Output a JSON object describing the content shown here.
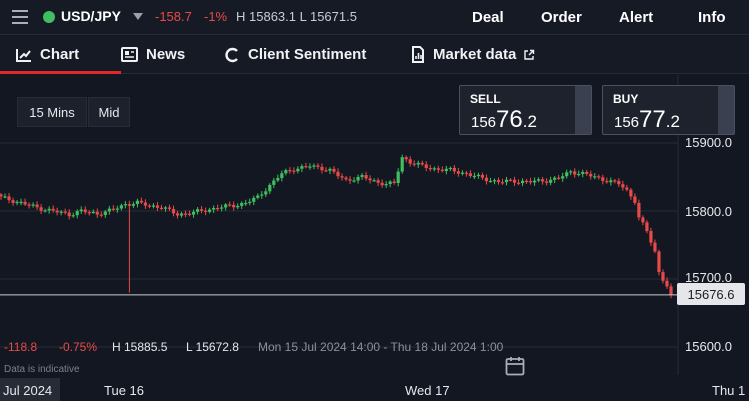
{
  "header": {
    "instrument": "USD/JPY",
    "change": "-158.7",
    "change_pct": "-1%",
    "high_low": "H 15863.1  L 15671.5",
    "nav": [
      "Deal",
      "Order",
      "Alert",
      "Info"
    ],
    "colors": {
      "up": "#3fbf5f",
      "down": "#e84a4a",
      "accent": "#e0282b"
    }
  },
  "tabs": [
    {
      "label": "Chart",
      "icon": "chart-icon",
      "active": true
    },
    {
      "label": "News",
      "icon": "news-icon"
    },
    {
      "label": "Client Sentiment",
      "icon": "sentiment-icon"
    },
    {
      "label": "Market data",
      "icon": "market-data-icon",
      "external_icon": "external-link-icon"
    }
  ],
  "controls": {
    "timeframe": "15 Mins",
    "price_type": "Mid"
  },
  "quotes": {
    "sell": {
      "label": "SELL",
      "prefix": "156",
      "big": "76",
      "suffix": ".2"
    },
    "buy": {
      "label": "BUY",
      "prefix": "156",
      "big": "77",
      "suffix": ".2"
    }
  },
  "stats": {
    "change": "-118.8",
    "change_pct": "-0.75%",
    "high": "H 15885.5",
    "low": "L 15672.8",
    "range": "Mon 15 Jul 2024 14:00 - Thu 18 Jul 2024 1:00",
    "disclaimer": "Data is indicative"
  },
  "chart_data": {
    "type": "candlestick",
    "current_price_label": "15676.6",
    "y_ticks": [
      "15900.0",
      "15800.0",
      "15700.0",
      "15600.0"
    ],
    "y_tick_values": [
      15900,
      15800,
      15700,
      15600
    ],
    "x_ticks": [
      "Jul 2024",
      "Tue 16",
      "Wed 17",
      "Thu 1"
    ],
    "series": [
      {
        "close_path": [
          [
            0,
            15820
          ],
          [
            5,
            15812
          ],
          [
            9,
            15805
          ],
          [
            13,
            15800
          ],
          [
            17,
            15795
          ],
          [
            20,
            15800
          ],
          [
            24,
            15796
          ],
          [
            28,
            15802
          ],
          [
            31,
            15810
          ],
          [
            34,
            15812
          ],
          [
            37,
            15808
          ],
          [
            40,
            15806
          ],
          [
            42,
            15800
          ],
          [
            44,
            15795
          ],
          [
            47,
            15797
          ],
          [
            50,
            15800
          ],
          [
            54,
            15805
          ],
          [
            58,
            15808
          ],
          [
            61,
            15812
          ],
          [
            64,
            15820
          ],
          [
            67,
            15838
          ],
          [
            70,
            15855
          ],
          [
            73,
            15862
          ],
          [
            77,
            15866
          ],
          [
            80,
            15863
          ],
          [
            82,
            15860
          ],
          [
            84,
            15852
          ],
          [
            86,
            15845
          ],
          [
            88,
            15848
          ],
          [
            90,
            15850
          ],
          [
            92,
            15846
          ],
          [
            94,
            15842
          ],
          [
            96,
            15840
          ],
          [
            98,
            15840
          ],
          [
            100,
            15879
          ],
          [
            102,
            15872
          ],
          [
            105,
            15866
          ],
          [
            108,
            15862
          ],
          [
            112,
            15860
          ],
          [
            116,
            15855
          ],
          [
            120,
            15848
          ],
          [
            124,
            15843
          ],
          [
            128,
            15844
          ],
          [
            132,
            15843
          ],
          [
            136,
            15845
          ],
          [
            139,
            15848
          ],
          [
            142,
            15858
          ],
          [
            145,
            15855
          ],
          [
            148,
            15850
          ],
          [
            151,
            15845
          ],
          [
            154,
            15840
          ],
          [
            156,
            15830
          ],
          [
            158,
            15815
          ],
          [
            159,
            15790
          ],
          [
            161,
            15770
          ],
          [
            163,
            15740
          ],
          [
            164,
            15710
          ],
          [
            166,
            15690
          ],
          [
            167,
            15676.6
          ]
        ]
      }
    ]
  }
}
